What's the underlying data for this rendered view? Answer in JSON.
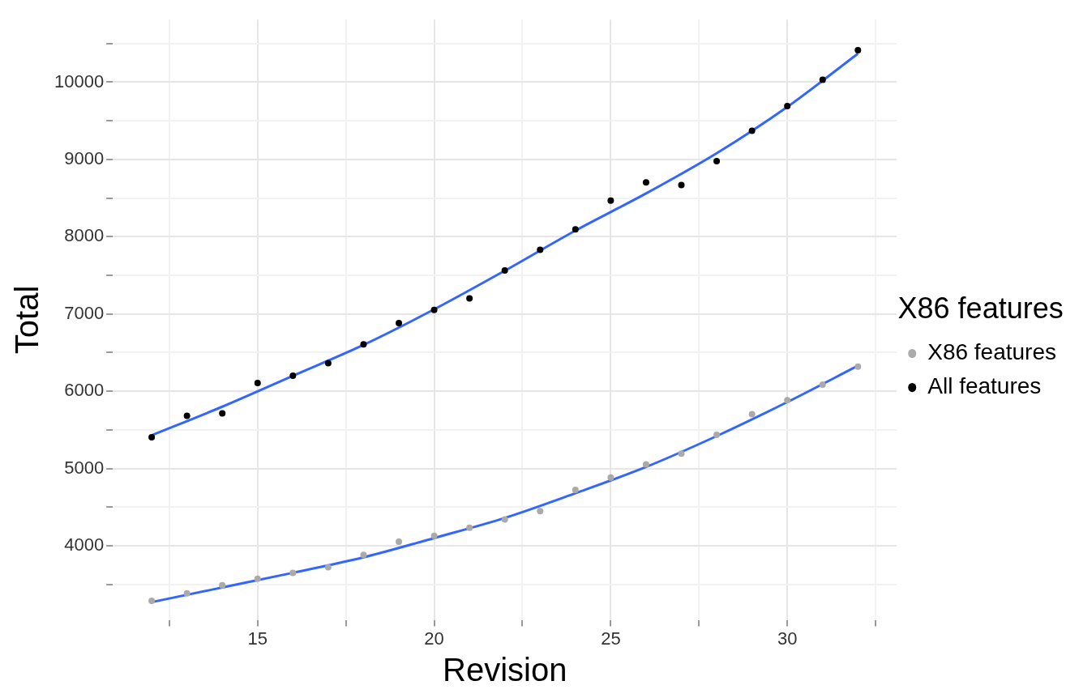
{
  "chart_data": {
    "type": "scatter",
    "xlabel": "Revision",
    "ylabel": "Total",
    "legend_title": "X86 features",
    "legend": "right",
    "grid": true,
    "marker": "circle",
    "xlim": [
      10.9,
      33.1
    ],
    "ylim": [
      3040,
      10810
    ],
    "xticks": [
      {
        "value": 12.5,
        "label": null
      },
      15,
      {
        "value": 17.5,
        "label": null
      },
      20,
      {
        "value": 22.5,
        "label": null
      },
      25,
      {
        "value": 27.5,
        "label": null
      },
      30,
      {
        "value": 32.5,
        "label": null
      }
    ],
    "yticks": [
      {
        "value": 3500,
        "label": null
      },
      4000,
      {
        "value": 4500,
        "label": null
      },
      5000,
      {
        "value": 5500,
        "label": null
      },
      6000,
      {
        "value": 6500,
        "label": null
      },
      7000,
      {
        "value": 7500,
        "label": null
      },
      8000,
      {
        "value": 8500,
        "label": null
      },
      9000,
      {
        "value": 9500,
        "label": null
      },
      10000,
      {
        "value": 10500,
        "label": null
      }
    ],
    "series": [
      {
        "name": "X86 features",
        "color": "#aaaaaa",
        "x": [
          12,
          13,
          14,
          15,
          16,
          17,
          18,
          19,
          20,
          21,
          22,
          23,
          24,
          25,
          26,
          27,
          28,
          29,
          30,
          31,
          32
        ],
        "values": [
          3287,
          3383,
          3489,
          3574,
          3649,
          3723,
          3883,
          4053,
          4128,
          4234,
          4340,
          4447,
          4723,
          4883,
          5053,
          5191,
          5436,
          5702,
          5883,
          6085,
          6319
        ]
      },
      {
        "name": "All features",
        "color": "#000000",
        "x": [
          12,
          13,
          14,
          15,
          16,
          17,
          18,
          19,
          20,
          21,
          22,
          23,
          24,
          25,
          26,
          27,
          28,
          29,
          30,
          31,
          32
        ],
        "values": [
          5404,
          5681,
          5713,
          6106,
          6202,
          6362,
          6606,
          6883,
          7053,
          7202,
          7564,
          7830,
          8096,
          8468,
          8702,
          8670,
          8979,
          9372,
          9691,
          10032,
          10415
        ]
      },
      {
        "type": "line",
        "color": "#3366ff",
        "marker": "none",
        "x": [
          12,
          14,
          16,
          18,
          20,
          22,
          24,
          26,
          28,
          30,
          32
        ],
        "values": [
          3270,
          3460,
          3650,
          3850,
          4100,
          4360,
          4680,
          5020,
          5420,
          5860,
          6330
        ]
      },
      {
        "type": "line",
        "color": "#3366ff",
        "marker": "none",
        "x": [
          12,
          14,
          16,
          18,
          20,
          22,
          24,
          26,
          28,
          30,
          32
        ],
        "values": [
          5430,
          5800,
          6200,
          6600,
          7060,
          7560,
          8080,
          8560,
          9080,
          9680,
          10370
        ]
      }
    ]
  }
}
